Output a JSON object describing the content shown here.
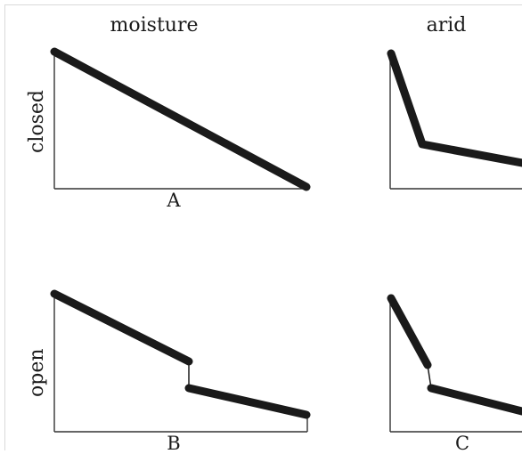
{
  "columns": {
    "moisture": "moisture",
    "arid": "arid"
  },
  "rows": {
    "closed": "closed",
    "open": "open"
  },
  "panels": {
    "a": "A",
    "b": "B",
    "c": "C"
  }
}
